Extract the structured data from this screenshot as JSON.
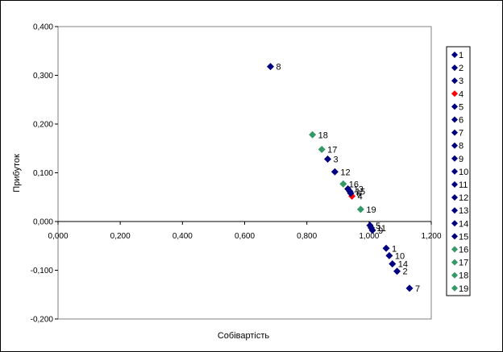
{
  "chart_data": {
    "type": "scatter",
    "title": "",
    "xlabel": "Собівартість",
    "ylabel": "Прибуток",
    "xlim": [
      0,
      1.2
    ],
    "ylim": [
      -0.2,
      0.4
    ],
    "x_ticks": [
      "0,000",
      "0,200",
      "0,400",
      "0,600",
      "0,800",
      "1,000",
      "1,200"
    ],
    "y_ticks": [
      "-0,200",
      "-0,100",
      "0,000",
      "0,100",
      "0,200",
      "0,300",
      "0,400"
    ],
    "grid": false,
    "legend_position": "right",
    "colors": {
      "navy": "#000080",
      "red": "#ff0000",
      "green": "#339966"
    },
    "series": [
      {
        "name": "1",
        "label": "1",
        "x": 1.055,
        "y": -0.055,
        "color": "#000080"
      },
      {
        "name": "2",
        "label": "2",
        "x": 1.09,
        "y": -0.102,
        "color": "#000080"
      },
      {
        "name": "3",
        "label": "3",
        "x": 0.867,
        "y": 0.128,
        "color": "#000080"
      },
      {
        "name": "4",
        "label": "4",
        "x": 0.945,
        "y": 0.052,
        "color": "#ff0000"
      },
      {
        "name": "5",
        "label": "5",
        "x": 1.003,
        "y": -0.008,
        "color": "#000080"
      },
      {
        "name": "6",
        "label": "6",
        "x": 0.941,
        "y": 0.058,
        "color": "#000080"
      },
      {
        "name": "7",
        "label": "7",
        "x": 1.13,
        "y": -0.137,
        "color": "#000080"
      },
      {
        "name": "8",
        "label": "8",
        "x": 0.683,
        "y": 0.318,
        "color": "#000080"
      },
      {
        "name": "9",
        "label": "9",
        "x": 1.011,
        "y": -0.018,
        "color": "#000080"
      },
      {
        "name": "10",
        "label": "10",
        "x": 1.065,
        "y": -0.07,
        "color": "#000080"
      },
      {
        "name": "11",
        "label": "11",
        "x": 1.007,
        "y": -0.013,
        "color": "#000080"
      },
      {
        "name": "12",
        "label": "12",
        "x": 0.89,
        "y": 0.102,
        "color": "#000080"
      },
      {
        "name": "13",
        "label": "13",
        "x": 0.932,
        "y": 0.067,
        "color": "#000080"
      },
      {
        "name": "14",
        "label": "14",
        "x": 1.075,
        "y": -0.087,
        "color": "#000080"
      },
      {
        "name": "15",
        "label": "15",
        "x": 0.938,
        "y": 0.062,
        "color": "#000080"
      },
      {
        "name": "16",
        "label": "16",
        "x": 0.917,
        "y": 0.077,
        "color": "#339966"
      },
      {
        "name": "17",
        "label": "17",
        "x": 0.848,
        "y": 0.148,
        "color": "#339966"
      },
      {
        "name": "18",
        "label": "18",
        "x": 0.818,
        "y": 0.178,
        "color": "#339966"
      },
      {
        "name": "19",
        "label": "19",
        "x": 0.973,
        "y": 0.025,
        "color": "#339966"
      }
    ]
  }
}
